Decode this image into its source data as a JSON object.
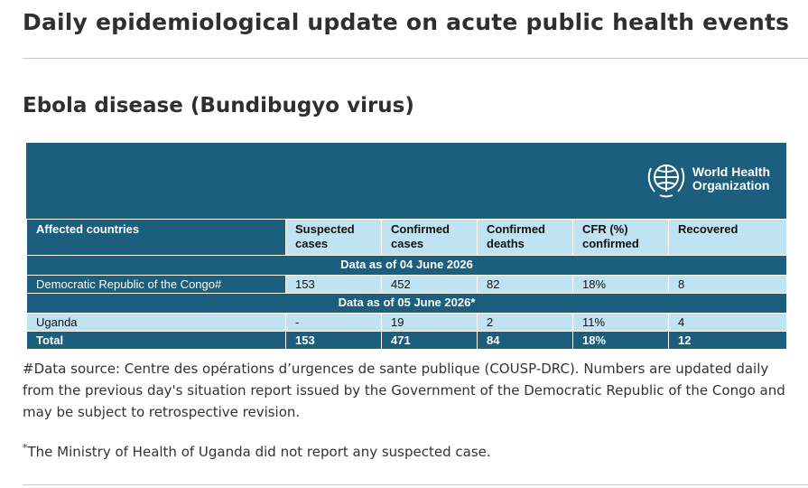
{
  "header": {
    "title": "Daily epidemiological update on acute public health events"
  },
  "section": {
    "title": "Ebola disease (Bundibugyo virus)"
  },
  "table": {
    "logo": [
      "World Health",
      "Organization"
    ],
    "columns": [
      "Affected countries",
      "Suspected cases",
      "Confirmed cases",
      "Confirmed deaths",
      "CFR (%) confirmed",
      "Recovered"
    ],
    "groups": [
      {
        "label": "Data as of 04 June 2026",
        "rows": [
          [
            "Democratic Republic of the Congo#",
            "153",
            "452",
            "82",
            "18%",
            "8"
          ]
        ]
      },
      {
        "label": "Data as of 05 June 2026*",
        "rows": [
          [
            "Uganda",
            "-",
            "19",
            "2",
            "11%",
            "4"
          ]
        ]
      }
    ],
    "total": [
      "Total",
      "153",
      "471",
      "84",
      "18%",
      "12"
    ]
  },
  "notes": [
    {
      "text": "#Data source: Centre des opérations d’urgences de sante publique (COUSP-DRC). Numbers are updated daily from the previous day's situation report issued by the Government of the Democratic Republic of the Congo and may be subject to retrospective revision."
    },
    {
      "mark": "*",
      "text": "The Ministry of Health of Uganda did not report any suspected case."
    }
  ]
}
